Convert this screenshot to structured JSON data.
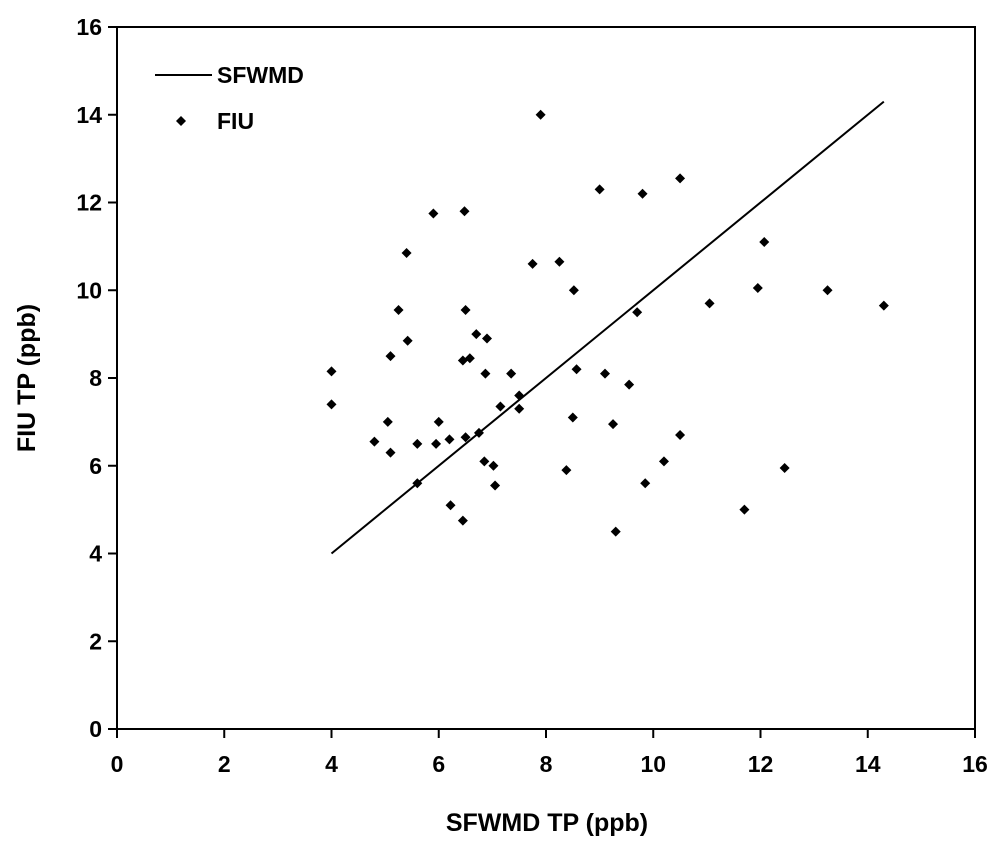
{
  "chart_data": {
    "type": "scatter",
    "xlabel": "SFWMD TP (ppb)",
    "ylabel": "FIU TP (ppb)",
    "xlim": [
      0,
      16
    ],
    "ylim": [
      0,
      16
    ],
    "xticks": [
      0,
      2,
      4,
      6,
      8,
      10,
      12,
      14,
      16
    ],
    "yticks": [
      0,
      2,
      4,
      6,
      8,
      10,
      12,
      14,
      16
    ],
    "grid": false,
    "legend": "top-left",
    "series": [
      {
        "name": "SFWMD",
        "kind": "line",
        "color": "#000000",
        "x": [
          4.0,
          14.3
        ],
        "y": [
          4.0,
          14.3
        ]
      },
      {
        "name": "FIU",
        "kind": "scatter",
        "marker": "diamond",
        "color": "#000000",
        "x": [
          4.0,
          4.0,
          4.8,
          5.05,
          5.1,
          5.1,
          5.25,
          5.4,
          5.42,
          5.6,
          5.6,
          5.9,
          5.95,
          6.0,
          6.2,
          6.22,
          6.45,
          6.45,
          6.48,
          6.5,
          6.5,
          6.58,
          6.7,
          6.75,
          6.85,
          6.87,
          6.9,
          7.02,
          7.05,
          7.15,
          7.35,
          7.5,
          7.5,
          7.75,
          7.9,
          8.25,
          8.38,
          8.5,
          8.52,
          8.57,
          9.0,
          9.1,
          9.25,
          9.3,
          9.55,
          9.7,
          9.8,
          9.85,
          10.2,
          10.5,
          10.5,
          11.05,
          11.7,
          11.95,
          12.07,
          12.45,
          13.25,
          14.3
        ],
        "y": [
          8.15,
          7.4,
          6.55,
          7.0,
          6.3,
          8.5,
          9.55,
          10.85,
          8.85,
          6.5,
          5.6,
          11.75,
          6.5,
          7.0,
          6.6,
          5.1,
          4.75,
          8.4,
          11.8,
          9.55,
          6.65,
          8.45,
          9.0,
          6.75,
          6.1,
          8.1,
          8.9,
          6.0,
          5.55,
          7.35,
          8.1,
          7.6,
          7.3,
          10.6,
          14.0,
          10.65,
          5.9,
          7.1,
          10.0,
          8.2,
          12.3,
          8.1,
          6.95,
          4.5,
          7.85,
          9.5,
          12.2,
          5.6,
          6.1,
          6.7,
          12.55,
          9.7,
          5.0,
          10.05,
          11.1,
          5.95,
          10.0,
          9.65
        ]
      }
    ]
  }
}
